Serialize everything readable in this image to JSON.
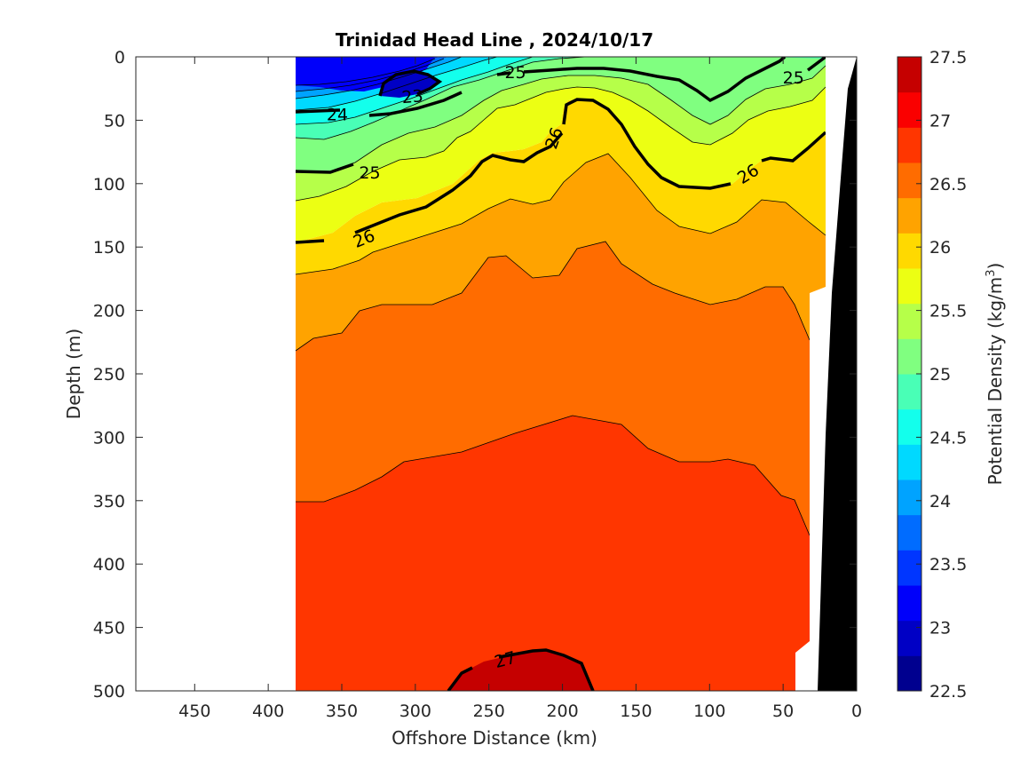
{
  "chart_data": {
    "type": "contour",
    "title": "Trinidad Head Line , 2024/10/17",
    "xlabel": "Offshore Distance (km)",
    "ylabel": "Depth (m)",
    "colorbar_label_main": "Potential Density (kg/m",
    "colorbar_label_sup": "3",
    "colorbar_label_end": ")",
    "xlim": [
      490,
      0
    ],
    "ylim": [
      0,
      500
    ],
    "x_reversed": true,
    "y_reversed": true,
    "xticks": [
      450,
      400,
      350,
      300,
      250,
      200,
      150,
      100,
      50,
      0
    ],
    "yticks": [
      0,
      50,
      100,
      150,
      200,
      250,
      300,
      350,
      400,
      450,
      500
    ],
    "color_range": [
      22.5,
      27.5
    ],
    "colorbar_ticks": [
      22.5,
      23,
      23.5,
      24,
      24.5,
      25,
      25.5,
      26,
      26.5,
      27,
      27.5
    ],
    "contour_interval": 0.25,
    "labeled_contours": [
      23,
      24,
      25,
      26,
      27
    ],
    "colorbar_colors": [
      "#00008f",
      "#0000c5",
      "#0000fa",
      "#0036ff",
      "#006cff",
      "#00a3ff",
      "#00d9ff",
      "#13ffec",
      "#49ffb6",
      "#80ff80",
      "#b6ff49",
      "#ecff13",
      "#ffd900",
      "#ffa300",
      "#ff6c00",
      "#ff3600",
      "#fa0000",
      "#c50000"
    ],
    "contour_labels": [
      {
        "text": "23",
        "x": 302,
        "y": 31,
        "rot": -5
      },
      {
        "text": "24",
        "x": 353,
        "y": 45,
        "rot": 0
      },
      {
        "text": "25",
        "x": 232,
        "y": 12,
        "rot": 0
      },
      {
        "text": "25",
        "x": 43,
        "y": 16,
        "rot": 0
      },
      {
        "text": "25",
        "x": 331,
        "y": 91,
        "rot": 0
      },
      {
        "text": "26",
        "x": 206,
        "y": 64,
        "rot": -70
      },
      {
        "text": "26",
        "x": 74,
        "y": 92,
        "rot": -32
      },
      {
        "text": "26",
        "x": 335,
        "y": 143,
        "rot": -22
      },
      {
        "text": "27",
        "x": 239,
        "y": 475,
        "rot": -15
      }
    ],
    "bathymetry": [
      [
        0,
        0
      ],
      [
        -4,
        500
      ],
      [
        20,
        500
      ],
      [
        25,
        480
      ],
      [
        25,
        0
      ]
    ]
  }
}
